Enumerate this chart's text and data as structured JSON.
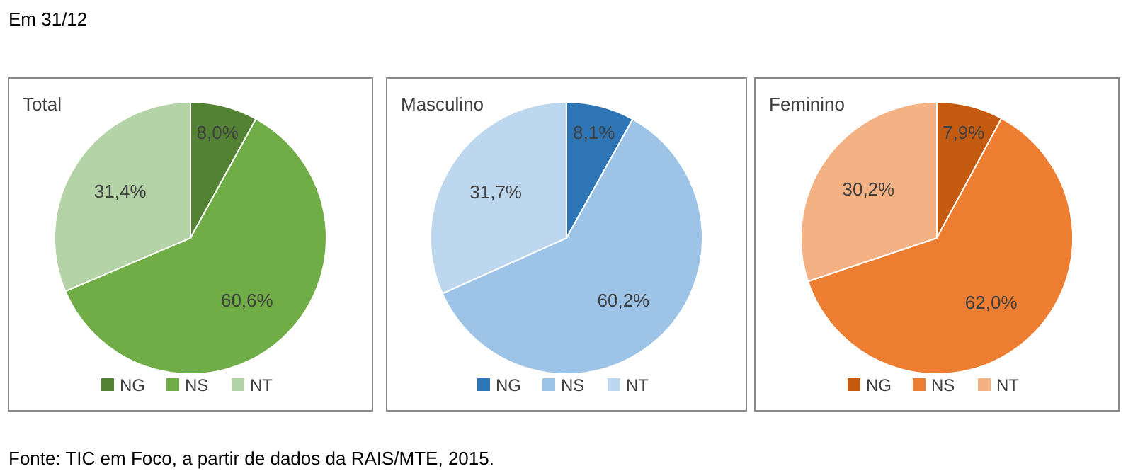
{
  "chart_data": [
    {
      "type": "pie",
      "title": "Total",
      "categories": [
        "NG",
        "NS",
        "NT"
      ],
      "values": [
        8.0,
        60.6,
        31.4
      ],
      "colors": [
        "#548235",
        "#70ad47",
        "#b4d3a6"
      ],
      "value_labels": [
        "8,0%",
        "60,6%",
        "31,4%"
      ],
      "legend": "bottom",
      "annotations": [
        "Em 31/12",
        "Fonte: TIC em Foco, a partir de dados da RAIS/MTE, 2015."
      ]
    },
    {
      "type": "pie",
      "title": "Masculino",
      "categories": [
        "NG",
        "NS",
        "NT"
      ],
      "values": [
        8.1,
        60.2,
        31.7
      ],
      "colors": [
        "#2e75b6",
        "#9dc3e6",
        "#bdd7ee"
      ],
      "value_labels": [
        "8,1%",
        "60,2%",
        "31,7%"
      ],
      "legend": "bottom"
    },
    {
      "type": "pie",
      "title": "Feminino",
      "categories": [
        "NG",
        "NS",
        "NT"
      ],
      "values": [
        7.9,
        62.0,
        30.2
      ],
      "colors": [
        "#c55a11",
        "#ed7d31",
        "#f4b183"
      ],
      "value_labels": [
        "7,9%",
        "62,0%",
        "30,2%"
      ],
      "legend": "bottom"
    }
  ]
}
